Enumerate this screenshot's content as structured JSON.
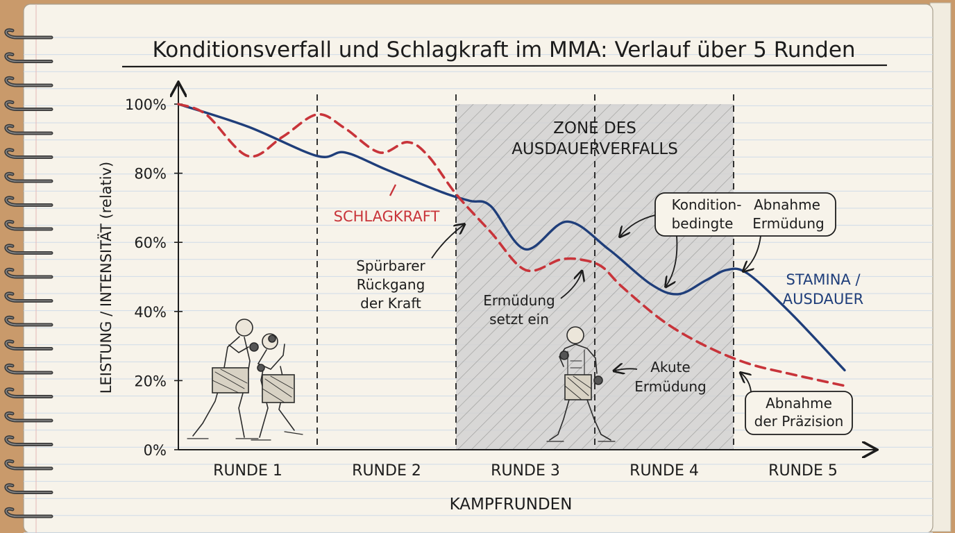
{
  "colors": {
    "stamina": "#1f3e7a",
    "punch": "#c8343a",
    "paper": "#f7f3ea",
    "ruled_line": "#cfdbe8",
    "zone_fill": "#cfcfcf"
  },
  "icons": {
    "spiral": "spiral-binding-icon",
    "fighters": "boxers-clinch-illustration",
    "fighter": "single-fighter-illustration"
  },
  "chart_data": {
    "type": "line",
    "title": "Konditionsverfall und Schlagkraft im MMA: Verlauf über 5 Runden",
    "xlabel": "KAMPFRUNDEN",
    "ylabel": "LEISTUNG / INTENSITÄT (relativ)",
    "categories": [
      "RUNDE 1",
      "RUNDE 2",
      "RUNDE 3",
      "RUNDE 4",
      "RUNDE 5"
    ],
    "xlim": [
      0,
      5
    ],
    "ylim": [
      0,
      100
    ],
    "y_ticks": [
      "0%",
      "20%",
      "40%",
      "60%",
      "80%",
      "100%"
    ],
    "grid": false,
    "series": [
      {
        "name": "STAMINA / AUSDAUER",
        "x": [
          0,
          0.5,
          1.0,
          1.2,
          1.5,
          1.9,
          2.1,
          2.25,
          2.5,
          2.8,
          3.1,
          3.4,
          3.6,
          3.8,
          3.95,
          4.1,
          4.4,
          4.8
        ],
        "values": [
          100,
          93.5,
          85,
          86,
          81,
          74.5,
          72,
          70.5,
          58,
          66,
          58,
          48,
          45,
          49,
          52,
          51,
          40,
          23
        ]
      },
      {
        "name": "SCHLAGKRAFT",
        "x": [
          0,
          0.2,
          0.5,
          0.75,
          1.0,
          1.2,
          1.45,
          1.65,
          1.8,
          2.0,
          2.25,
          2.5,
          2.75,
          2.9,
          3.05,
          3.2,
          3.5,
          3.8,
          4.1,
          4.4,
          4.8
        ],
        "values": [
          100,
          97,
          85,
          90.5,
          97,
          93,
          86,
          89,
          85,
          74,
          63,
          52,
          55,
          55,
          53,
          47,
          37,
          30,
          25,
          22,
          18.5
        ]
      }
    ],
    "zone": {
      "x_range": [
        2,
        4
      ],
      "label_line1": "ZONE DES",
      "label_line2": "AUSDAUERVERFALLS"
    },
    "round_dividers": [
      1,
      2,
      3,
      4
    ],
    "legend": {
      "stamina_line1": "STAMINA /",
      "stamina_line2": "AUSDAUER",
      "punch": "SCHLAGKRAFT"
    },
    "annotations": {
      "rueckgang_1": "Spürbarer",
      "rueckgang_2": "Rückgang",
      "rueckgang_3": "der Kraft",
      "ermuedung_1": "Ermüdung",
      "ermuedung_2": "setzt ein",
      "kondition_1": "Kondition-",
      "kondition_2": "bedingte",
      "abnahme_1": "Abnahme",
      "abnahme_2": "Ermüdung",
      "akute_1": "Akute",
      "akute_2": "Ermüdung",
      "praezision_1": "Abnahme",
      "praezision_2": "der Präzision"
    }
  }
}
